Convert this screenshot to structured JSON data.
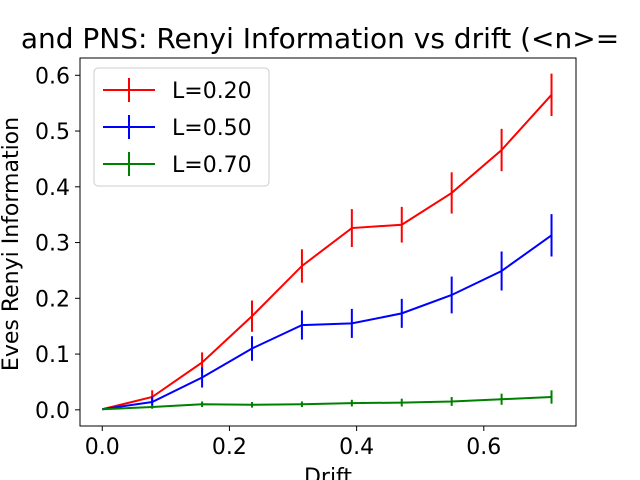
{
  "chart_data": {
    "type": "line",
    "title": "and PNS: Renyi Information vs drift (<n>=",
    "xlabel": "Drift",
    "ylabel": "Eves Renyi Information",
    "xlim": [
      -0.035,
      0.745
    ],
    "ylim": [
      -0.029,
      0.631
    ],
    "xticks": [
      0.0,
      0.2,
      0.4,
      0.6
    ],
    "xtick_labels": [
      "0.0",
      "0.2",
      "0.4",
      "0.6"
    ],
    "yticks": [
      0.0,
      0.1,
      0.2,
      0.3,
      0.4,
      0.5,
      0.6
    ],
    "ytick_labels": [
      "0.0",
      "0.1",
      "0.2",
      "0.3",
      "0.4",
      "0.5",
      "0.6"
    ],
    "grid": false,
    "legend_position": "top-left",
    "x": [
      0.0,
      0.0785,
      0.157,
      0.2355,
      0.314,
      0.3925,
      0.471,
      0.5495,
      0.628,
      0.7065
    ],
    "series": [
      {
        "name": "L=0.20",
        "color": "#ff0000",
        "values": [
          0.001,
          0.023,
          0.085,
          0.168,
          0.258,
          0.326,
          0.332,
          0.389,
          0.466,
          0.565
        ],
        "errors": [
          0.0,
          0.012,
          0.018,
          0.028,
          0.03,
          0.034,
          0.032,
          0.037,
          0.038,
          0.038
        ]
      },
      {
        "name": "L=0.50",
        "color": "#0000ff",
        "values": [
          0.001,
          0.014,
          0.058,
          0.11,
          0.152,
          0.155,
          0.173,
          0.206,
          0.249,
          0.313
        ],
        "errors": [
          0.0,
          0.01,
          0.018,
          0.022,
          0.026,
          0.026,
          0.026,
          0.033,
          0.035,
          0.038
        ]
      },
      {
        "name": "L=0.70",
        "color": "#008000",
        "values": [
          0.001,
          0.005,
          0.01,
          0.009,
          0.01,
          0.012,
          0.013,
          0.015,
          0.019,
          0.023
        ],
        "errors": [
          0.0,
          0.003,
          0.005,
          0.005,
          0.005,
          0.006,
          0.007,
          0.008,
          0.01,
          0.012
        ]
      }
    ]
  }
}
